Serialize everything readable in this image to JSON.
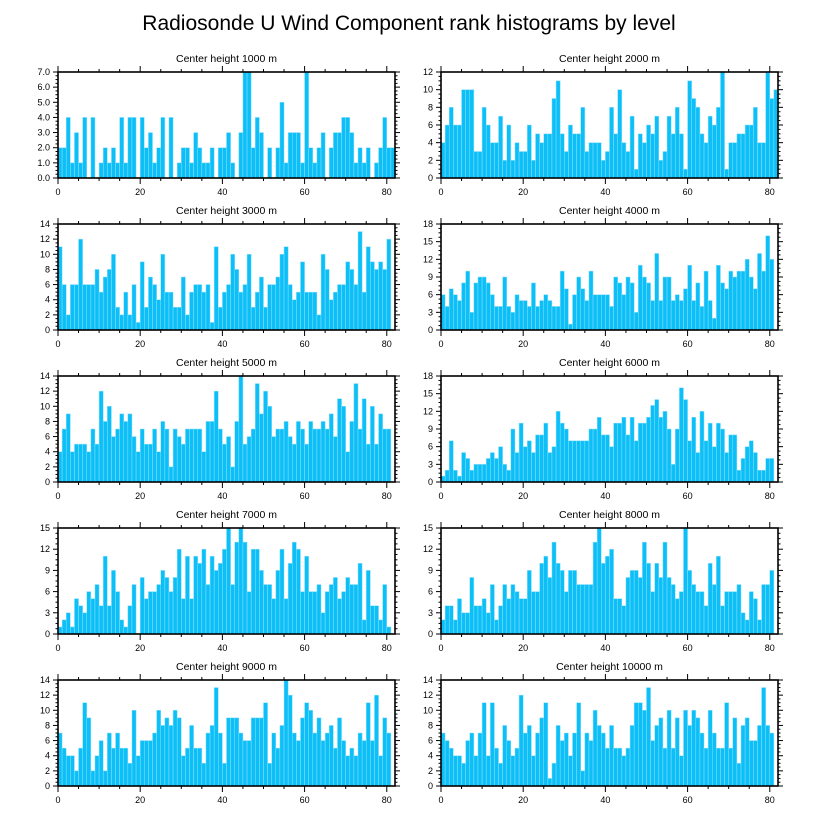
{
  "chart_data": {
    "type": "bar",
    "title": "Radiosonde U Wind Component rank histograms by level",
    "panels": [
      {
        "title": "Center height 1000 m",
        "xlim": [
          0,
          82
        ],
        "ylim": [
          0,
          7
        ],
        "yticks": [
          "0.0",
          "1.0",
          "2.0",
          "3.0",
          "4.0",
          "5.0",
          "6.0",
          "7.0"
        ],
        "xticks": [
          "0",
          "20",
          "40",
          "60",
          "80"
        ],
        "values": [
          2,
          2,
          4,
          1,
          3,
          1,
          4,
          0,
          4,
          0,
          1,
          2,
          1,
          2,
          1,
          4,
          1,
          4,
          4,
          0,
          4,
          2,
          3,
          1,
          2,
          4,
          0,
          4,
          0,
          1,
          2,
          2,
          1,
          3,
          2,
          1,
          1,
          2,
          0,
          2,
          2,
          3,
          1,
          0,
          3,
          7,
          7,
          2,
          4,
          3,
          0,
          2,
          0,
          2,
          5,
          1,
          3,
          3,
          3,
          1,
          7,
          2,
          1,
          2,
          3,
          0,
          2,
          3,
          3,
          4,
          4,
          3,
          1,
          2,
          1,
          2,
          0,
          1,
          2,
          4,
          2,
          2
        ]
      },
      {
        "title": "Center height 2000 m",
        "xlim": [
          0,
          82
        ],
        "ylim": [
          0,
          12
        ],
        "yticks": [
          "0",
          "2",
          "4",
          "6",
          "8",
          "10",
          "12"
        ],
        "xticks": [
          "0",
          "20",
          "40",
          "60",
          "80"
        ],
        "values": [
          4,
          6,
          8,
          6,
          6,
          10,
          10,
          10,
          3,
          3,
          8,
          6,
          4,
          4,
          7,
          2,
          6,
          2,
          4,
          3,
          3,
          6,
          2,
          5,
          4,
          5,
          5,
          9,
          11,
          5,
          3,
          6,
          5,
          5,
          8,
          3,
          4,
          4,
          4,
          2,
          3,
          8,
          5,
          10,
          4,
          3,
          7,
          1,
          5,
          4,
          6,
          5,
          7,
          2,
          3,
          7,
          5,
          8,
          5,
          1,
          11,
          9,
          8,
          5,
          4,
          7,
          6,
          8,
          12,
          1,
          4,
          4,
          5,
          5,
          6,
          6,
          8,
          4,
          4,
          12,
          9,
          10
        ]
      },
      {
        "title": "Center height 3000 m",
        "xlim": [
          0,
          82
        ],
        "ylim": [
          0,
          14
        ],
        "yticks": [
          "0",
          "2",
          "4",
          "6",
          "8",
          "10",
          "12",
          "14"
        ],
        "xticks": [
          "0",
          "20",
          "40",
          "60",
          "80"
        ],
        "values": [
          11,
          6,
          2,
          6,
          6,
          12,
          6,
          6,
          6,
          8,
          5,
          7,
          8,
          10,
          3,
          2,
          5,
          2,
          6,
          1,
          9,
          3,
          7,
          6,
          4,
          10,
          5,
          5,
          3,
          3,
          7,
          2,
          5,
          6,
          6,
          5,
          6,
          1,
          11,
          3,
          5,
          6,
          10,
          8,
          5,
          6,
          10,
          3,
          5,
          7,
          3,
          6,
          6,
          7,
          10,
          11,
          6,
          4,
          5,
          9,
          5,
          5,
          5,
          2,
          10,
          8,
          4,
          5,
          6,
          6,
          9,
          8,
          6,
          13,
          5,
          11,
          9,
          8,
          9,
          8,
          12
        ]
      },
      {
        "title": "Center height 4000 m",
        "xlim": [
          0,
          82
        ],
        "ylim": [
          0,
          18
        ],
        "yticks": [
          "0",
          "3",
          "6",
          "9",
          "12",
          "15",
          "18"
        ],
        "xticks": [
          "0",
          "20",
          "40",
          "60",
          "80"
        ],
        "values": [
          6,
          4,
          7,
          6,
          5,
          8,
          10,
          3,
          8,
          9,
          9,
          8,
          6,
          4,
          4,
          9,
          4,
          3,
          6,
          5,
          5,
          4,
          8,
          4,
          5,
          6,
          5,
          4,
          4,
          10,
          7,
          1,
          6,
          9,
          7,
          5,
          10,
          6,
          6,
          6,
          6,
          4,
          9,
          8,
          6,
          9,
          8,
          3,
          11,
          9,
          8,
          5,
          13,
          5,
          9,
          9,
          5,
          6,
          5,
          7,
          11,
          5,
          8,
          4,
          10,
          5,
          2,
          11,
          8,
          7,
          10,
          9,
          10,
          10,
          12,
          9,
          7,
          13,
          10,
          16,
          12
        ]
      },
      {
        "title": "Center height 5000 m",
        "xlim": [
          0,
          82
        ],
        "ylim": [
          0,
          14
        ],
        "yticks": [
          "0",
          "2",
          "4",
          "6",
          "8",
          "10",
          "12",
          "14"
        ],
        "xticks": [
          "0",
          "20",
          "40",
          "60",
          "80"
        ],
        "values": [
          4,
          7,
          9,
          4,
          5,
          5,
          5,
          4,
          7,
          5,
          12,
          8,
          10,
          6,
          7,
          9,
          8,
          9,
          6,
          4,
          7,
          5,
          5,
          7,
          4,
          8,
          7,
          2,
          7,
          6,
          5,
          7,
          7,
          7,
          7,
          4,
          8,
          8,
          12,
          7,
          5,
          6,
          2,
          8,
          14,
          5,
          6,
          7,
          13,
          9,
          12,
          10,
          6,
          7,
          7,
          8,
          6,
          5,
          8,
          7,
          5,
          8,
          7,
          7,
          8,
          7,
          9,
          6,
          11,
          10,
          4,
          8,
          13,
          7,
          11,
          5,
          10,
          5,
          9,
          7,
          7
        ]
      },
      {
        "title": "Center height 6000 m",
        "xlim": [
          0,
          82
        ],
        "ylim": [
          0,
          18
        ],
        "yticks": [
          "0",
          "3",
          "6",
          "9",
          "12",
          "15",
          "18"
        ],
        "xticks": [
          "0",
          "20",
          "40",
          "60",
          "80"
        ],
        "values": [
          1,
          2,
          7,
          2,
          1,
          5,
          4,
          2,
          3,
          3,
          3,
          4,
          5,
          4,
          6,
          3,
          2,
          9,
          5,
          10,
          6,
          7,
          5,
          8,
          8,
          10,
          5,
          6,
          12,
          10,
          9,
          7,
          7,
          7,
          7,
          7,
          9,
          9,
          11,
          8,
          8,
          6,
          10,
          10,
          11,
          8,
          11,
          7,
          10,
          10,
          11,
          13,
          14,
          11,
          12,
          9,
          3,
          9,
          16,
          14,
          7,
          11,
          5,
          12,
          7,
          10,
          6,
          10,
          9,
          5,
          8,
          8,
          2,
          4,
          6,
          7,
          5,
          2,
          2,
          4,
          4
        ]
      },
      {
        "title": "Center height 7000 m",
        "xlim": [
          0,
          82
        ],
        "ylim": [
          0,
          15
        ],
        "yticks": [
          "0",
          "3",
          "6",
          "9",
          "12",
          "15"
        ],
        "xticks": [
          "0",
          "20",
          "40",
          "60",
          "80"
        ],
        "values": [
          1,
          2,
          3,
          1,
          5,
          4,
          3,
          6,
          5,
          7,
          4,
          11,
          4,
          9,
          6,
          2,
          1,
          4,
          7,
          0,
          8,
          5,
          6,
          6,
          7,
          9,
          8,
          6,
          8,
          12,
          5,
          11,
          5,
          11,
          10,
          12,
          7,
          11,
          9,
          10,
          12,
          15,
          7,
          13,
          15,
          13,
          6,
          12,
          12,
          9,
          7,
          7,
          5,
          9,
          12,
          5,
          10,
          13,
          12,
          6,
          11,
          6,
          6,
          7,
          3,
          6,
          7,
          8,
          5,
          6,
          8,
          7,
          7,
          10,
          2,
          9,
          4,
          4,
          2,
          7,
          1
        ]
      },
      {
        "title": "Center height 8000 m",
        "xlim": [
          0,
          82
        ],
        "ylim": [
          0,
          15
        ],
        "yticks": [
          "0",
          "3",
          "6",
          "9",
          "12",
          "15"
        ],
        "xticks": [
          "0",
          "20",
          "40",
          "60",
          "80"
        ],
        "values": [
          2,
          4,
          4,
          2,
          5,
          3,
          3,
          8,
          4,
          4,
          5,
          3,
          7,
          2,
          4,
          7,
          5,
          7,
          6,
          5,
          5,
          9,
          6,
          6,
          10,
          11,
          8,
          13,
          10,
          9,
          6,
          9,
          9,
          7,
          7,
          7,
          7,
          13,
          15,
          10,
          11,
          12,
          5,
          5,
          4,
          8,
          9,
          9,
          8,
          13,
          10,
          6,
          10,
          8,
          13,
          8,
          7,
          5,
          6,
          15,
          9,
          7,
          6,
          6,
          4,
          10,
          7,
          11,
          4,
          6,
          6,
          6,
          7,
          3,
          2,
          6,
          5,
          2,
          7,
          7,
          9
        ]
      },
      {
        "title": "Center height 9000 m",
        "xlim": [
          0,
          82
        ],
        "ylim": [
          0,
          14
        ],
        "yticks": [
          "0",
          "2",
          "4",
          "6",
          "8",
          "10",
          "12",
          "14"
        ],
        "xticks": [
          "0",
          "20",
          "40",
          "60",
          "80"
        ],
        "values": [
          7,
          5,
          4,
          4,
          2,
          5,
          11,
          9,
          2,
          4,
          6,
          2,
          7,
          5,
          7,
          5,
          5,
          3,
          10,
          4,
          6,
          6,
          6,
          7,
          10,
          8,
          9,
          8,
          10,
          9,
          4,
          5,
          8,
          5,
          5,
          3,
          7,
          8,
          13,
          7,
          3,
          9,
          9,
          9,
          7,
          6,
          6,
          9,
          9,
          9,
          11,
          3,
          7,
          5,
          8,
          14,
          12,
          7,
          6,
          9,
          11,
          10,
          7,
          9,
          6,
          7,
          8,
          5,
          9,
          6,
          4,
          5,
          4,
          7,
          6,
          11,
          6,
          12,
          4,
          9,
          7
        ]
      },
      {
        "title": "Center height 10000 m",
        "xlim": [
          0,
          82
        ],
        "ylim": [
          0,
          14
        ],
        "yticks": [
          "0",
          "2",
          "4",
          "6",
          "8",
          "10",
          "12",
          "14"
        ],
        "xticks": [
          "0",
          "20",
          "40",
          "60",
          "80"
        ],
        "values": [
          7,
          6,
          5,
          4,
          4,
          3,
          6,
          7,
          4,
          7,
          11,
          4,
          11,
          5,
          3,
          8,
          6,
          4,
          5,
          12,
          7,
          8,
          4,
          7,
          9,
          11,
          1,
          3,
          8,
          6,
          7,
          4,
          7,
          11,
          2,
          7,
          6,
          10,
          8,
          7,
          5,
          8,
          5,
          5,
          4,
          5,
          8,
          11,
          11,
          10,
          13,
          6,
          8,
          9,
          5,
          10,
          5,
          9,
          4,
          10,
          8,
          10,
          9,
          7,
          5,
          10,
          7,
          5,
          5,
          11,
          5,
          9,
          3,
          8,
          9,
          6,
          6,
          8,
          13,
          8,
          7
        ]
      }
    ],
    "bar_color": "#0cbff7"
  }
}
